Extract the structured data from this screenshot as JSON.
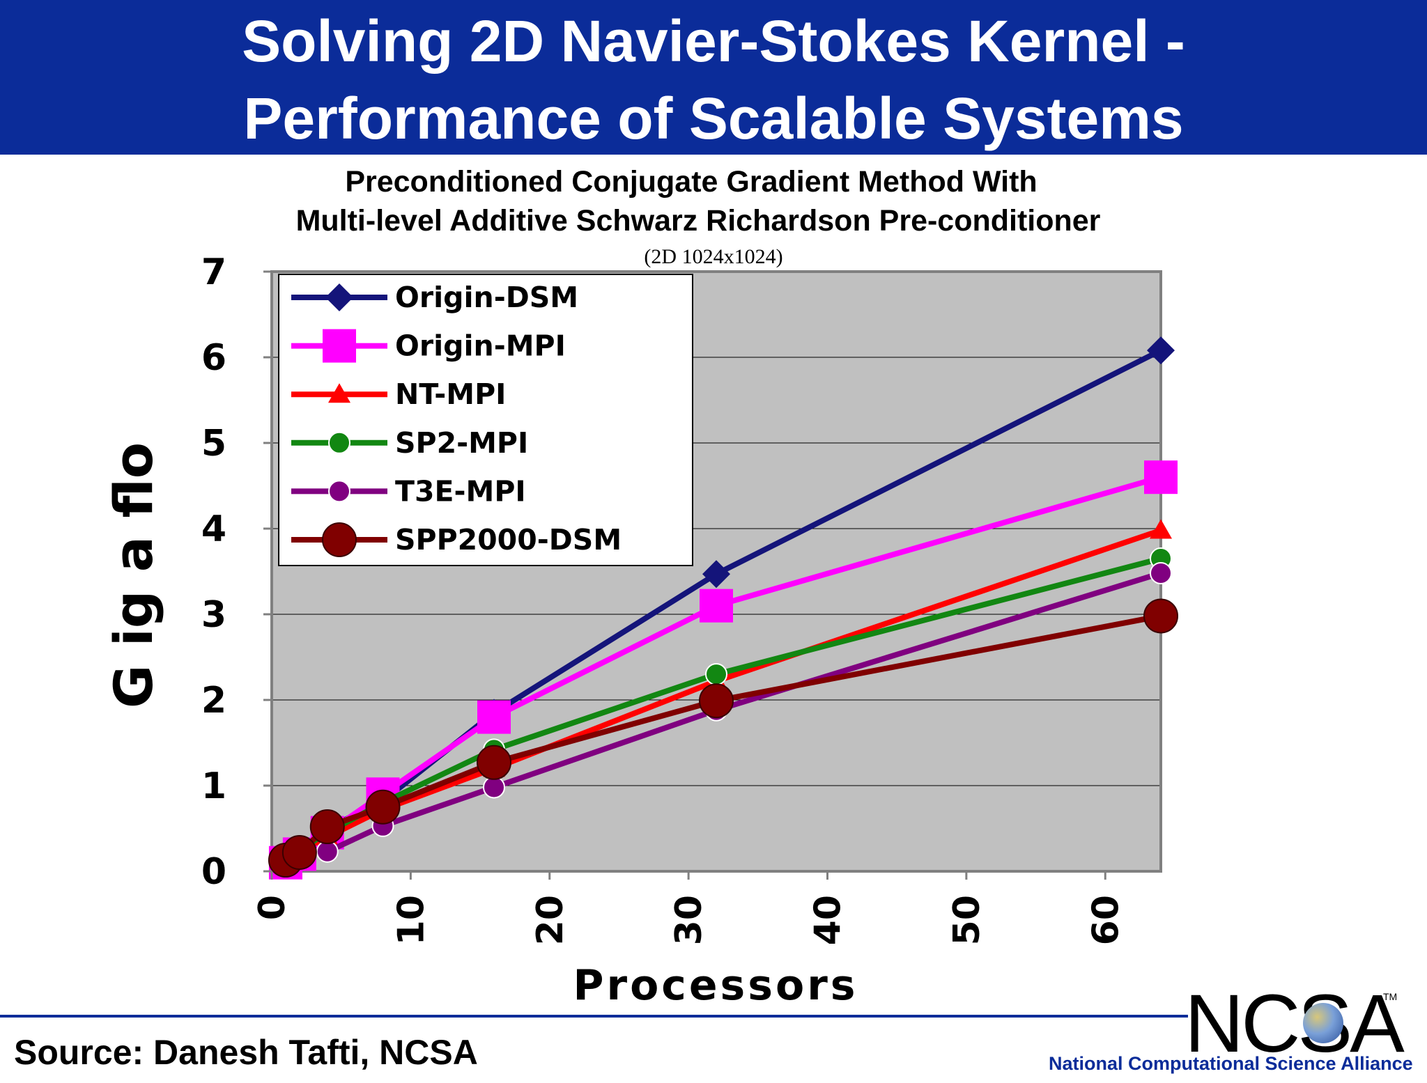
{
  "slide": {
    "title_line1": "Solving 2D Navier-Stokes Kernel -",
    "title_line2": "Performance of Scalable Systems",
    "banner_color": "#0b2c99",
    "source": "Source:  Danesh Tafti, NCSA",
    "logo_text": "NCSA",
    "logo_tm": "TM",
    "logo_tagline": "National Computational Science Alliance"
  },
  "chart_data": {
    "type": "line",
    "title_line1": "Preconditioned Conjugate Gradient Method With",
    "title_line2": "Multi-level Additive Schwarz Richardson Pre-conditioner",
    "subtitle": "(2D 1024x1024)",
    "xlabel": "Processors",
    "ylabel": "G ig a flo",
    "xlim": [
      0,
      64
    ],
    "ylim": [
      0,
      7
    ],
    "x_ticks": [
      "0",
      "10",
      "20",
      "30",
      "40",
      "50",
      "60"
    ],
    "y_ticks": [
      "0",
      "1",
      "2",
      "3",
      "4",
      "5",
      "6",
      "7"
    ],
    "grid": "horizontal",
    "plot_background": "#c0c0c0",
    "legend_position": "top-left",
    "series": [
      {
        "name": "Origin-DSM",
        "color": "#14147a",
        "marker": "diamond",
        "x": [
          1,
          2,
          4,
          8,
          16,
          32,
          64
        ],
        "y": [
          0.14,
          0.26,
          0.5,
          0.82,
          1.85,
          3.47,
          6.08
        ]
      },
      {
        "name": "Origin-MPI",
        "color": "#ff00ff",
        "marker": "square",
        "x": [
          1,
          2,
          4,
          8,
          16,
          32,
          64
        ],
        "y": [
          0.1,
          0.2,
          0.45,
          0.9,
          1.8,
          3.1,
          4.6
        ]
      },
      {
        "name": "NT-MPI",
        "color": "#ff0000",
        "marker": "triangle",
        "x": [
          1,
          2,
          4,
          8,
          16,
          32,
          64
        ],
        "y": [
          0.13,
          0.24,
          0.4,
          0.72,
          1.2,
          2.22,
          3.98
        ]
      },
      {
        "name": "SP2-MPI",
        "color": "#128712",
        "marker": "circle",
        "x": [
          1,
          2,
          4,
          8,
          16,
          32,
          64
        ],
        "y": [
          0.13,
          0.25,
          0.45,
          0.8,
          1.42,
          2.3,
          3.65
        ]
      },
      {
        "name": "T3E-MPI",
        "color": "#800080",
        "marker": "circle",
        "x": [
          1,
          2,
          4,
          8,
          16,
          32,
          64
        ],
        "y": [
          0.12,
          0.22,
          0.23,
          0.53,
          0.98,
          1.88,
          3.48
        ]
      },
      {
        "name": "SPP2000-DSM",
        "color": "#800000",
        "marker": "bigcircle",
        "x": [
          1,
          2,
          4,
          8,
          16,
          32,
          64
        ],
        "y": [
          0.13,
          0.22,
          0.52,
          0.75,
          1.27,
          1.99,
          2.98
        ]
      }
    ]
  }
}
